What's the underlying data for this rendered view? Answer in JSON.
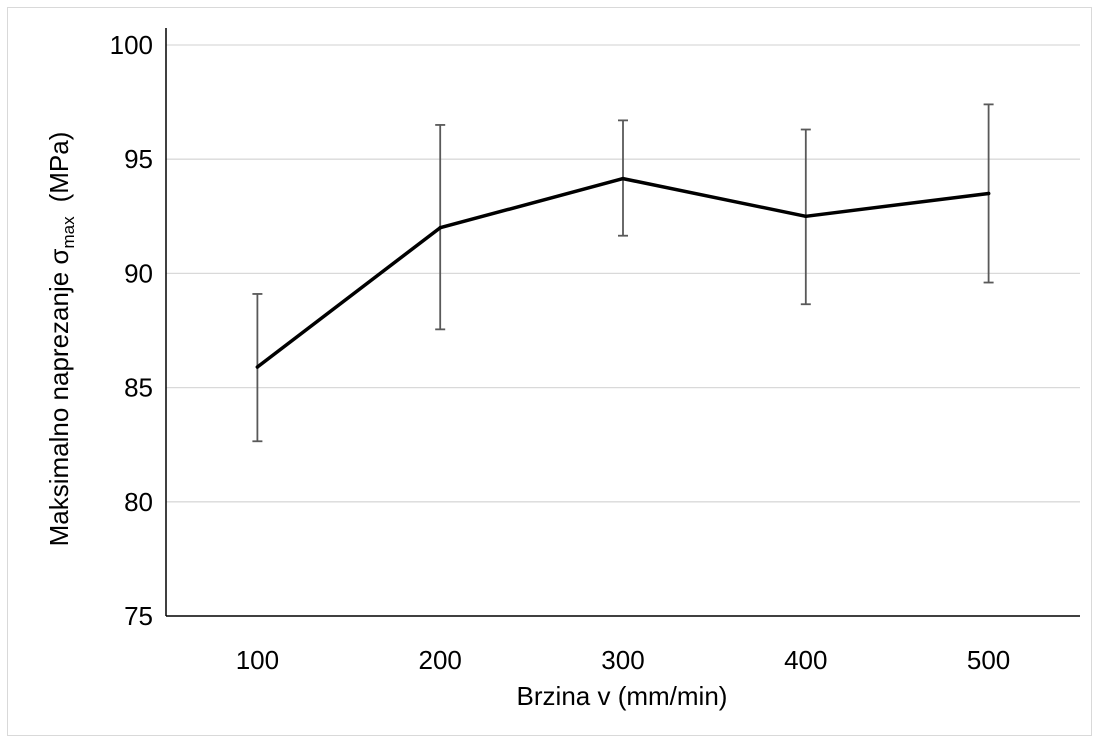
{
  "chart_data": {
    "type": "line",
    "title": "",
    "xlabel": "Brzina v (mm/min)",
    "ylabel": {
      "main": "Maksimalno naprezanje σ",
      "subscript": "max",
      "unit": "(MPa)"
    },
    "categories": [
      "100",
      "200",
      "300",
      "400",
      "500"
    ],
    "series": [
      {
        "values": [
          85.9,
          92.0,
          94.15,
          92.5,
          93.5
        ],
        "error_lower": [
          82.65,
          87.55,
          91.65,
          88.65,
          89.6
        ],
        "error_upper": [
          89.1,
          96.5,
          96.7,
          96.3,
          97.4
        ]
      }
    ],
    "ylim": [
      75,
      100
    ],
    "yticks": [
      75,
      80,
      85,
      90,
      95,
      100
    ],
    "grid": true,
    "legend": "none",
    "colors": {
      "line": "#000000",
      "error_bar": "#595959",
      "grid": "#d9d9d9",
      "axis": "#000000"
    }
  }
}
